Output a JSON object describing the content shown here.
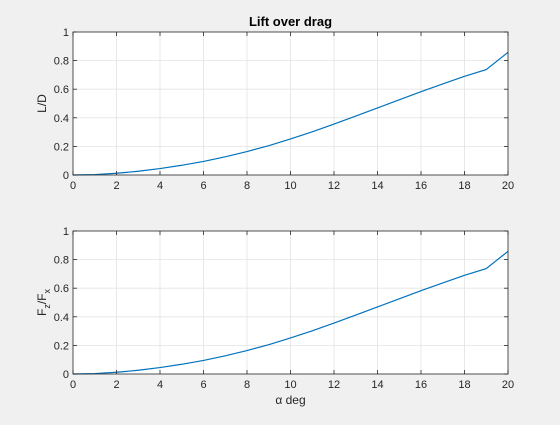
{
  "colors": {
    "background": "#f0f0f0",
    "axes_background": "#ffffff",
    "axis_line": "#262626",
    "grid": "#e3e3e3",
    "line": "#0072bd"
  },
  "chart_data": [
    {
      "type": "line",
      "title": "Lift over drag",
      "xlabel": "",
      "ylabel": "L/D",
      "xlim": [
        0,
        20
      ],
      "ylim": [
        0,
        1
      ],
      "xticks": [
        0,
        2,
        4,
        6,
        8,
        10,
        12,
        14,
        16,
        18,
        20
      ],
      "yticks": [
        0,
        0.2,
        0.4,
        0.6,
        0.8,
        1
      ],
      "xtick_labels": [
        "0",
        "2",
        "4",
        "6",
        "8",
        "10",
        "12",
        "14",
        "16",
        "18",
        "20"
      ],
      "ytick_labels": [
        "0",
        "0.2",
        "0.4",
        "0.6",
        "0.8",
        "1"
      ],
      "grid": true,
      "series": [
        {
          "x": [
            0,
            1,
            2,
            3,
            4,
            5,
            6,
            7,
            8,
            9,
            10,
            11,
            12,
            13,
            14,
            15,
            16,
            17,
            18,
            19,
            20
          ],
          "y": [
            0,
            0.003,
            0.012,
            0.026,
            0.045,
            0.068,
            0.095,
            0.127,
            0.164,
            0.205,
            0.252,
            0.302,
            0.356,
            0.412,
            0.469,
            0.526,
            0.583,
            0.637,
            0.69,
            0.737,
            0.858
          ]
        }
      ]
    },
    {
      "type": "line",
      "title": "",
      "xlabel": "α deg",
      "ylabel": "F_z/F_x",
      "ylabel_parts": {
        "main1": "F",
        "sub1": "z",
        "main2": "/F",
        "sub2": "x"
      },
      "xlim": [
        0,
        20
      ],
      "ylim": [
        0,
        1
      ],
      "xticks": [
        0,
        2,
        4,
        6,
        8,
        10,
        12,
        14,
        16,
        18,
        20
      ],
      "yticks": [
        0,
        0.2,
        0.4,
        0.6,
        0.8,
        1
      ],
      "xtick_labels": [
        "0",
        "2",
        "4",
        "6",
        "8",
        "10",
        "12",
        "14",
        "16",
        "18",
        "20"
      ],
      "ytick_labels": [
        "0",
        "0.2",
        "0.4",
        "0.6",
        "0.8",
        "1"
      ],
      "grid": true,
      "series": [
        {
          "x": [
            0,
            1,
            2,
            3,
            4,
            5,
            6,
            7,
            8,
            9,
            10,
            11,
            12,
            13,
            14,
            15,
            16,
            17,
            18,
            19,
            20
          ],
          "y": [
            0,
            0.003,
            0.012,
            0.026,
            0.045,
            0.068,
            0.095,
            0.127,
            0.164,
            0.205,
            0.252,
            0.302,
            0.356,
            0.412,
            0.469,
            0.526,
            0.583,
            0.637,
            0.69,
            0.737,
            0.858
          ]
        }
      ]
    }
  ]
}
